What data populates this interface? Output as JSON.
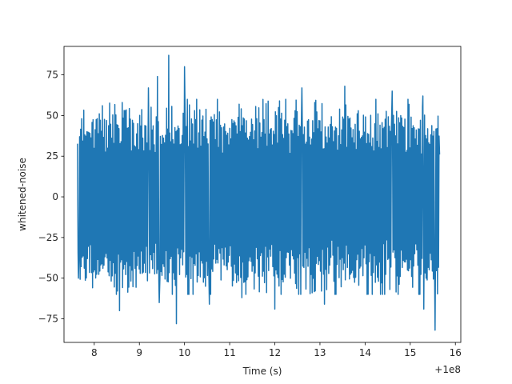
{
  "chart_data": {
    "type": "line",
    "title": "",
    "xlabel": "Time (s)",
    "ylabel": "whitened-noise",
    "x_offset_label": "+1e8",
    "x_offset": 100000000,
    "xlim": [
      7.33,
      16.12
    ],
    "ylim": [
      -89.5,
      92.5
    ],
    "x_ticks": [
      8,
      9,
      10,
      11,
      12,
      13,
      14,
      15,
      16
    ],
    "y_ticks": [
      -75,
      -50,
      -25,
      0,
      25,
      50,
      75
    ],
    "x_tick_labels": [
      "8",
      "9",
      "10",
      "11",
      "12",
      "13",
      "14",
      "15",
      "16"
    ],
    "y_tick_labels": [
      "−75",
      "−50",
      "−25",
      "0",
      "25",
      "50",
      "75"
    ],
    "grid": false,
    "legend": "none",
    "series": [
      {
        "color": "#1f77b4",
        "x_range": [
          7.63,
          15.65
        ],
        "sample_count": 700,
        "band": [
          -45,
          45
        ],
        "extremes": [
          {
            "x": 7.65,
            "y": -50
          },
          {
            "x": 8.56,
            "y": -70
          },
          {
            "x": 8.62,
            "y": 58
          },
          {
            "x": 9.2,
            "y": 67
          },
          {
            "x": 9.44,
            "y": -65
          },
          {
            "x": 9.4,
            "y": 74
          },
          {
            "x": 9.65,
            "y": 87
          },
          {
            "x": 9.82,
            "y": -78
          },
          {
            "x": 10.0,
            "y": 80
          },
          {
            "x": 10.55,
            "y": -66
          },
          {
            "x": 11.27,
            "y": -62
          },
          {
            "x": 12.0,
            "y": -69
          },
          {
            "x": 12.6,
            "y": 67
          },
          {
            "x": 13.1,
            "y": -66
          },
          {
            "x": 13.55,
            "y": 68
          },
          {
            "x": 14.6,
            "y": 65
          },
          {
            "x": 15.3,
            "y": -69
          },
          {
            "x": 15.28,
            "y": 62
          },
          {
            "x": 15.55,
            "y": -82
          },
          {
            "x": 15.65,
            "y": 26
          }
        ]
      }
    ]
  }
}
